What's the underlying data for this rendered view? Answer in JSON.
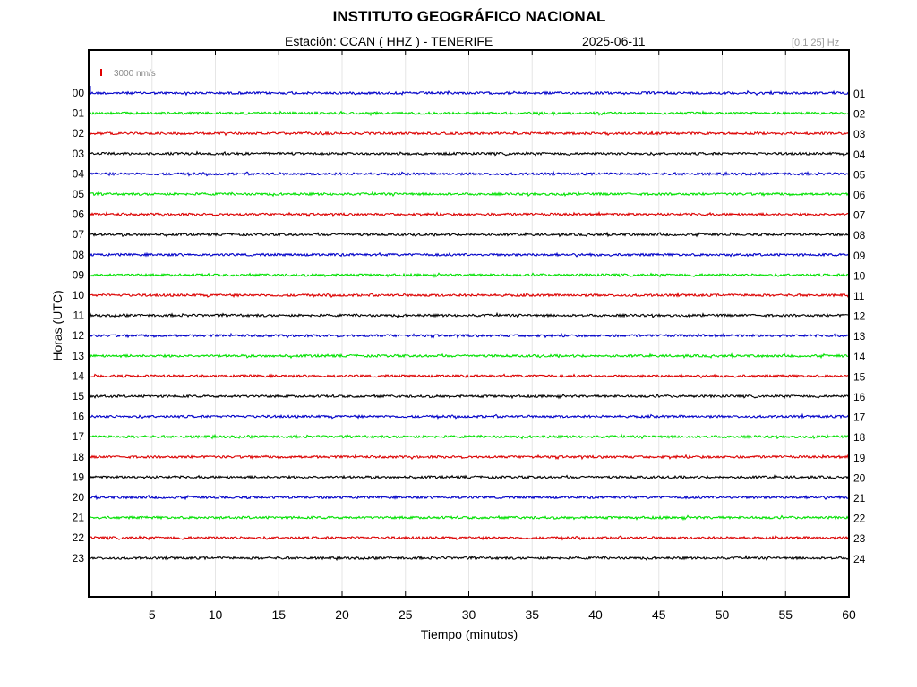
{
  "header": {
    "title": "INSTITUTO GEOGRÁFICO NACIONAL",
    "station": "Estación:  CCAN ( HHZ ) - TENERIFE",
    "date": "2025-06-11",
    "band": "[0.1 25] Hz"
  },
  "chart_data": {
    "type": "line",
    "xlabel": "Tiempo (minutos)",
    "ylabel": "Horas (UTC)",
    "xlim": [
      0,
      60
    ],
    "x_ticks": [
      5,
      10,
      15,
      20,
      25,
      30,
      35,
      40,
      45,
      50,
      55,
      60
    ],
    "grid": true,
    "scale_label": "3000 nm/s",
    "scale_color": "#e00000",
    "series": [
      {
        "start": "00",
        "end": "01",
        "color": "#0000c8"
      },
      {
        "start": "01",
        "end": "02",
        "color": "#00e000"
      },
      {
        "start": "02",
        "end": "03",
        "color": "#dc0000"
      },
      {
        "start": "03",
        "end": "04",
        "color": "#000000"
      },
      {
        "start": "04",
        "end": "05",
        "color": "#0000c8"
      },
      {
        "start": "05",
        "end": "06",
        "color": "#00e000"
      },
      {
        "start": "06",
        "end": "07",
        "color": "#dc0000"
      },
      {
        "start": "07",
        "end": "08",
        "color": "#000000"
      },
      {
        "start": "08",
        "end": "09",
        "color": "#0000c8"
      },
      {
        "start": "09",
        "end": "10",
        "color": "#00e000"
      },
      {
        "start": "10",
        "end": "11",
        "color": "#dc0000"
      },
      {
        "start": "11",
        "end": "12",
        "color": "#000000"
      },
      {
        "start": "12",
        "end": "13",
        "color": "#0000c8"
      },
      {
        "start": "13",
        "end": "14",
        "color": "#00e000"
      },
      {
        "start": "14",
        "end": "15",
        "color": "#dc0000"
      },
      {
        "start": "15",
        "end": "16",
        "color": "#000000"
      },
      {
        "start": "16",
        "end": "17",
        "color": "#0000c8"
      },
      {
        "start": "17",
        "end": "18",
        "color": "#00e000"
      },
      {
        "start": "18",
        "end": "19",
        "color": "#dc0000"
      },
      {
        "start": "19",
        "end": "20",
        "color": "#000000"
      },
      {
        "start": "20",
        "end": "21",
        "color": "#0000c8"
      },
      {
        "start": "21",
        "end": "22",
        "color": "#00e000"
      },
      {
        "start": "22",
        "end": "23",
        "color": "#dc0000"
      },
      {
        "start": "23",
        "end": "24",
        "color": "#000000"
      }
    ]
  }
}
